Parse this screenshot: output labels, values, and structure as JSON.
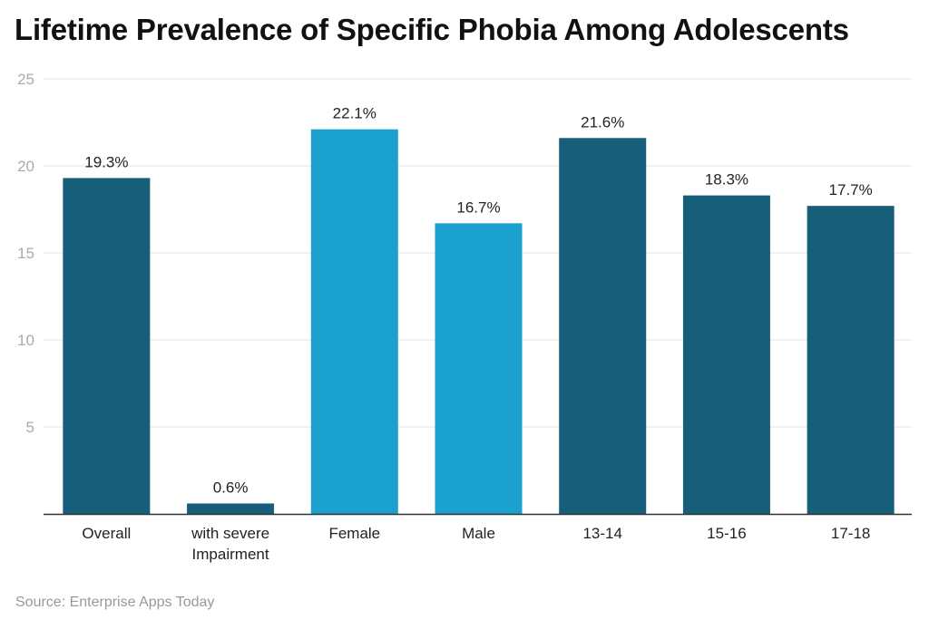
{
  "chart_data": {
    "type": "bar",
    "title": "Lifetime Prevalence of Specific Phobia Among Adolescents",
    "categories": [
      [
        "Overall"
      ],
      [
        "with severe",
        "Impairment"
      ],
      [
        "Female"
      ],
      [
        "Male"
      ],
      [
        "13-14"
      ],
      [
        "15-16"
      ],
      [
        "17-18"
      ]
    ],
    "values": [
      19.3,
      0.6,
      22.1,
      16.7,
      21.6,
      18.3,
      17.7
    ],
    "data_labels": [
      "19.3%",
      "0.6%",
      "22.1%",
      "16.7%",
      "21.6%",
      "18.3%",
      "17.7%"
    ],
    "bar_colors": [
      "#175e7a",
      "#175e7a",
      "#1aa1cf",
      "#1aa1cf",
      "#175e7a",
      "#175e7a",
      "#175e7a"
    ],
    "xlabel": "",
    "ylabel": "",
    "ylim": [
      0,
      25
    ],
    "yticks": [
      "5",
      "10",
      "15",
      "20",
      "25"
    ],
    "grid": true,
    "source": "Source: Enterprise Apps Today"
  }
}
